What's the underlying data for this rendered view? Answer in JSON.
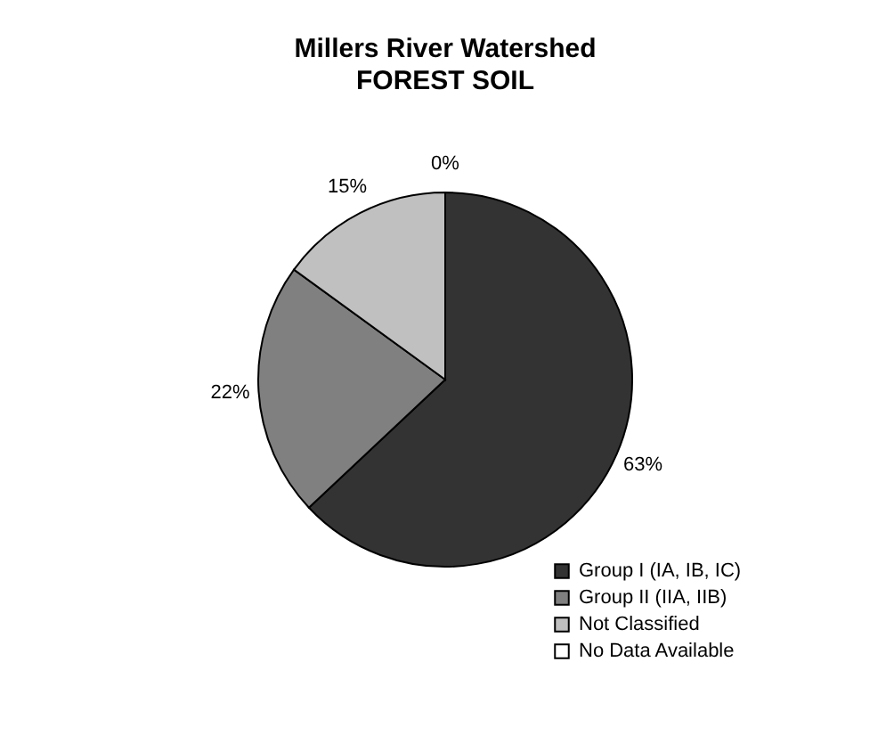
{
  "chart_data": {
    "type": "pie",
    "title": "Millers River Watershed",
    "subtitle": "FOREST SOIL",
    "categories": [
      "Group I (IA, IB, IC)",
      "Group II (IIA, IIB)",
      "Not Classified",
      "No Data Available"
    ],
    "values": [
      63,
      22,
      15,
      0
    ],
    "colors": [
      "#333333",
      "#808080",
      "#c0c0c0",
      "#ffffff"
    ],
    "value_labels": [
      "63%",
      "22%",
      "15%",
      "0%"
    ],
    "legend": "bottom"
  }
}
